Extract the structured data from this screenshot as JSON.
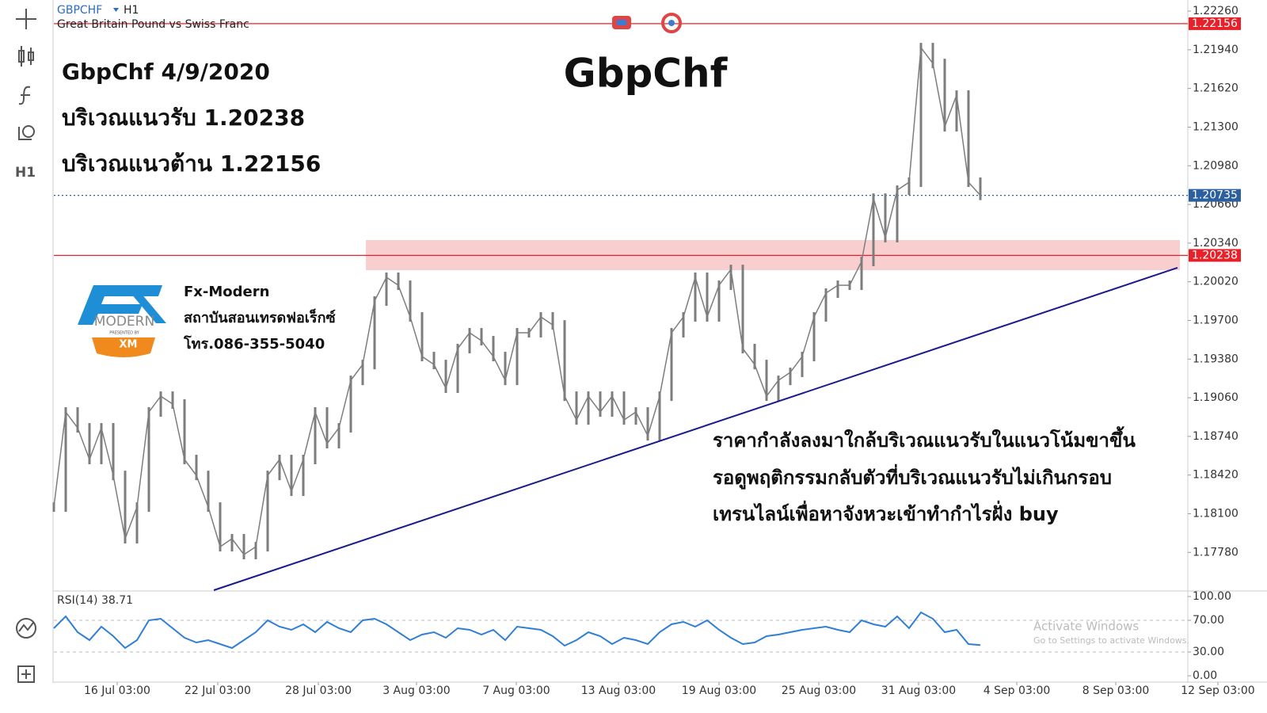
{
  "header": {
    "symbol": "GBPCHF",
    "timeframe": "H1",
    "description": "Great Britain Pound vs Swiss Franc"
  },
  "annotations": {
    "title": "GbpChf",
    "lines": [
      "GbpChf 4/9/2020",
      "บริเวณแนวรับ 1.20238",
      "บริเวณแนวต้าน 1.22156"
    ],
    "note": [
      "ราคากำลังลงมาใกล้บริเวณแนวรับในแนวโน้มขาขึ้น",
      "รอดูพฤติกรรมกลับตัวที่บริเวณแนวรับไม่เกินกรอบ",
      "เทรนไลน์เพื่อหาจังหวะเข้าทำกำไรฝั่ง buy"
    ],
    "brand": {
      "logo": "MODERN",
      "presented": "PRESENTED BY",
      "xm": "XM",
      "name": "Fx-Modern",
      "sub": "สถาบันสอนเทรดฟอเร็กซ์",
      "phone": "โทร.086-355-5040"
    }
  },
  "watermark": [
    "Activate Windows",
    "Go to Settings to activate Windows."
  ],
  "chart_data": {
    "type": "candlestick",
    "candle_color": "#7d7d7d",
    "closes": [
      1.18155,
      1.18942,
      1.18811,
      1.18549,
      1.18811,
      1.18417,
      1.17893,
      1.18155,
      1.18942,
      1.19073,
      1.19008,
      1.18549,
      1.18417,
      1.18155,
      1.17827,
      1.17893,
      1.17762,
      1.17827,
      1.18417,
      1.18549,
      1.18286,
      1.18549,
      1.18942,
      1.1868,
      1.18811,
      1.19204,
      1.19335,
      1.1986,
      1.20057,
      1.19991,
      1.19729,
      1.19401,
      1.19335,
      1.19139,
      1.19467,
      1.19598,
      1.19532,
      1.19401,
      1.19204,
      1.19598,
      1.19598,
      1.19729,
      1.19663,
      1.19073,
      1.18876,
      1.19073,
      1.18942,
      1.19073,
      1.18876,
      1.18942,
      1.18745,
      1.19073,
      1.19598,
      1.19729,
      1.20057,
      1.19729,
      1.19991,
      1.20122,
      1.19467,
      1.19335,
      1.19073,
      1.19204,
      1.1927,
      1.19401,
      1.19729,
      1.19926,
      1.19991,
      1.19991,
      1.20188,
      1.20712,
      1.20385,
      1.20778,
      1.20844,
      1.21958,
      1.21827,
      1.21303,
      1.21565,
      1.20844,
      1.20735
    ],
    "xlim": [
      0,
      95.6
    ],
    "ylim": [
      1.17467,
      1.22339
    ],
    "yticks": [
      {
        "value": 1.2226,
        "label": "1.22260"
      },
      {
        "value": 1.2194,
        "label": "1.21940"
      },
      {
        "value": 1.2162,
        "label": "1.21620"
      },
      {
        "value": 1.213,
        "label": "1.21300"
      },
      {
        "value": 1.2098,
        "label": "1.20980"
      },
      {
        "value": 1.2066,
        "label": "1.20660"
      },
      {
        "value": 1.2034,
        "label": "1.20340"
      },
      {
        "value": 1.2002,
        "label": "1.20020"
      },
      {
        "value": 1.197,
        "label": "1.19700"
      },
      {
        "value": 1.1938,
        "label": "1.19380"
      },
      {
        "value": 1.1906,
        "label": "1.19060"
      },
      {
        "value": 1.1874,
        "label": "1.18740"
      },
      {
        "value": 1.1842,
        "label": "1.18420"
      },
      {
        "value": 1.181,
        "label": "1.18100"
      },
      {
        "value": 1.1778,
        "label": "1.17780"
      }
    ],
    "xticks": [
      {
        "value": 5.33,
        "label": "16 Jul 03:00"
      },
      {
        "value": 13.8,
        "label": "22 Jul 03:00"
      },
      {
        "value": 22.27,
        "label": "28 Jul 03:00"
      },
      {
        "value": 30.53,
        "label": "3 Aug 03:00"
      },
      {
        "value": 38.93,
        "label": "7 Aug 03:00"
      },
      {
        "value": 47.53,
        "label": "13 Aug 03:00"
      },
      {
        "value": 56,
        "label": "19 Aug 03:00"
      },
      {
        "value": 64.4,
        "label": "25 Aug 03:00"
      },
      {
        "value": 72.8,
        "label": "31 Aug 03:00"
      },
      {
        "value": 81.07,
        "label": "4 Sep 03:00"
      },
      {
        "value": 89.4,
        "label": "8 Sep 03:00"
      },
      {
        "value": 98,
        "label": "12 Sep 03:00"
      }
    ],
    "levels": [
      {
        "value": 1.22156,
        "color": "#e8202a",
        "style": "solid"
      },
      {
        "value": 1.20735,
        "color": "#2b5f9e",
        "style": "dotted"
      },
      {
        "value": 1.20238,
        "color": "#e8202a",
        "style": "solid"
      }
    ],
    "support_zone": {
      "x": [
        26.27,
        94.8
      ],
      "y": [
        1.20116,
        1.20365
      ],
      "color": "#f7c6c6"
    },
    "trendline": {
      "x": [
        13.47,
        94.6
      ],
      "y": [
        1.17467,
        1.20136
      ],
      "color": "#1a1a8c"
    },
    "rsi": {
      "name": "RSI(14)",
      "color": "#2f7fd6",
      "values": [
        60,
        75,
        55,
        45,
        62,
        50,
        35,
        45,
        70,
        72,
        60,
        48,
        42,
        45,
        40,
        35,
        45,
        55,
        70,
        62,
        58,
        65,
        55,
        68,
        60,
        55,
        70,
        72,
        65,
        55,
        45,
        52,
        55,
        48,
        60,
        58,
        52,
        58,
        45,
        62,
        60,
        58,
        50,
        38,
        45,
        55,
        50,
        40,
        48,
        45,
        40,
        55,
        65,
        68,
        62,
        70,
        58,
        48,
        40,
        42,
        50,
        52,
        55,
        58,
        60,
        62,
        58,
        55,
        70,
        65,
        62,
        75,
        60,
        80,
        72,
        55,
        58,
        40,
        38.71
      ],
      "ylim": [
        0,
        100
      ],
      "yticks": [
        {
          "value": 100,
          "label": "100.00"
        },
        {
          "value": 70,
          "label": "70.00"
        },
        {
          "value": 30,
          "label": "30.00"
        },
        {
          "value": 0,
          "label": "0.00"
        }
      ],
      "levels": [
        70,
        30
      ]
    }
  }
}
